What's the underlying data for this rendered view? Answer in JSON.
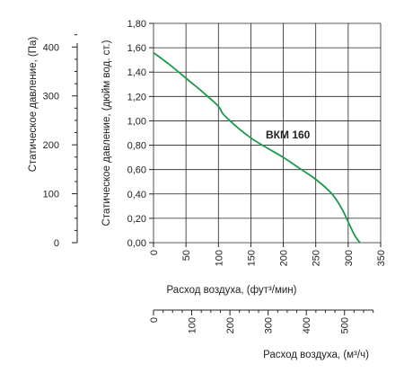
{
  "chart_data": {
    "type": "line",
    "series": [
      {
        "name": "ВКМ 160",
        "color": "#1a9a4a",
        "x": [
          0,
          25,
          50,
          75,
          100,
          110,
          150,
          200,
          225,
          250,
          275,
          290,
          300,
          310,
          318
        ],
        "y": [
          1.56,
          1.46,
          1.35,
          1.24,
          1.12,
          1.04,
          0.86,
          0.7,
          0.61,
          0.52,
          0.4,
          0.28,
          0.17,
          0.06,
          0.0
        ]
      }
    ],
    "xlabel": "Расход воздуха, (фут³/мин)",
    "ylabel": "Статическое давление, (дюйм вод. ст.)",
    "xlim": [
      0,
      350
    ],
    "ylim": [
      0,
      1.8
    ],
    "grid": true,
    "x_ticks": [
      "0",
      "50",
      "100",
      "150",
      "200",
      "250",
      "300",
      "350"
    ],
    "y_ticks": [
      "0,00",
      "0,20",
      "0,40",
      "0,60",
      "0,80",
      "1,00",
      "1,20",
      "1,40",
      "1,60",
      "1,80"
    ],
    "secondary_y": {
      "label": "Статическое давление, (Па)",
      "ticks": [
        "0",
        "100",
        "200",
        "300",
        "400"
      ],
      "values": [
        0,
        100,
        200,
        300,
        400
      ],
      "ylim": [
        0,
        448.3
      ]
    },
    "secondary_x": {
      "label": "Расход воздуха, (м³/ч)",
      "ticks": [
        "0",
        "100",
        "200",
        "300",
        "400",
        "500"
      ],
      "values": [
        0,
        100,
        200,
        300,
        400,
        500
      ],
      "xlim": [
        0,
        594.6
      ]
    }
  }
}
